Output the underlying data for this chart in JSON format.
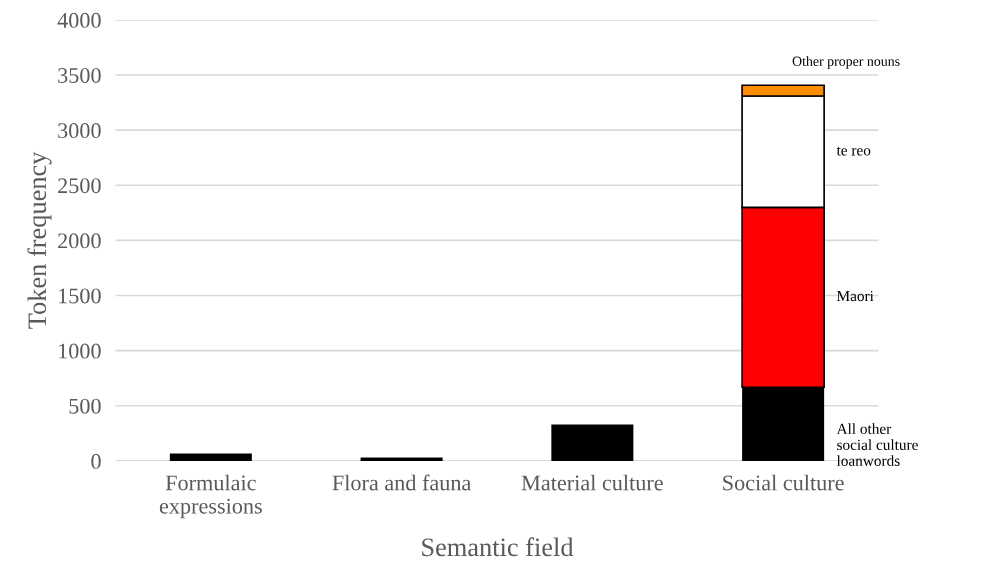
{
  "chart_data": {
    "type": "bar",
    "stacked": true,
    "xlabel": "Semantic field",
    "ylabel": "Token frequency",
    "categories": [
      "Formulaic\nexpressions",
      "Flora and fauna",
      "Material culture",
      "Social culture"
    ],
    "series": [
      {
        "name": "All other\nsocial culture\nloanwords",
        "color": "#000000",
        "values": [
          66,
          30,
          330,
          668
        ]
      },
      {
        "name": "Maori",
        "color": "#ff0000",
        "values": [
          null,
          null,
          null,
          1631
        ]
      },
      {
        "name": "te reo",
        "color": "#ffffff",
        "values": [
          null,
          null,
          null,
          1011
        ]
      },
      {
        "name": "Other proper nouns",
        "color": "#ff8c00",
        "values": [
          null,
          null,
          null,
          97
        ]
      }
    ],
    "ylim": [
      0,
      4000
    ],
    "yticks": [
      0,
      500,
      1000,
      1500,
      2000,
      2500,
      3000,
      3500,
      4000
    ],
    "grid": "y",
    "legend": false
  }
}
